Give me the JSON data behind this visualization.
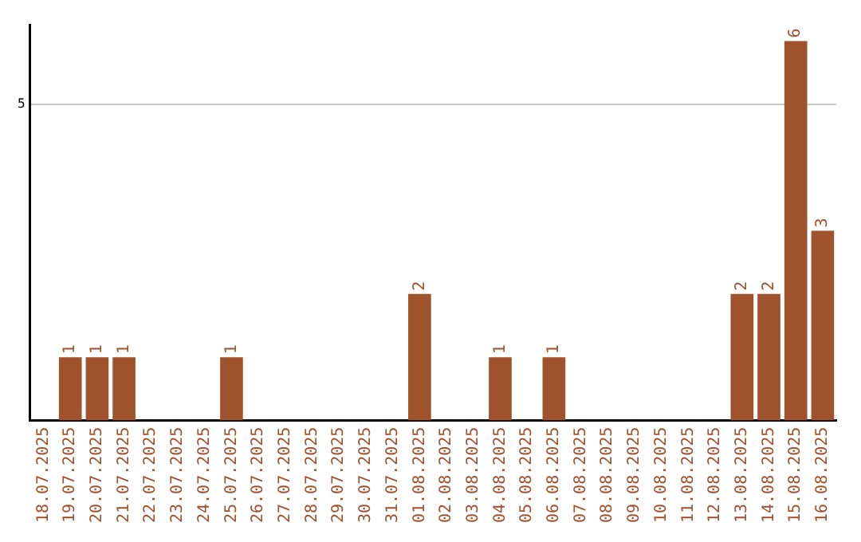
{
  "chart_data": {
    "type": "bar",
    "categories": [
      "18.07.2025",
      "19.07.2025",
      "20.07.2025",
      "21.07.2025",
      "22.07.2025",
      "23.07.2025",
      "24.07.2025",
      "25.07.2025",
      "26.07.2025",
      "27.07.2025",
      "28.07.2025",
      "29.07.2025",
      "30.07.2025",
      "31.07.2025",
      "01.08.2025",
      "02.08.2025",
      "03.08.2025",
      "04.08.2025",
      "05.08.2025",
      "06.08.2025",
      "07.08.2025",
      "08.08.2025",
      "09.08.2025",
      "10.08.2025",
      "11.08.2025",
      "12.08.2025",
      "13.08.2025",
      "14.08.2025",
      "15.08.2025",
      "16.08.2025"
    ],
    "values": [
      0,
      1,
      1,
      1,
      0,
      0,
      0,
      1,
      0,
      0,
      0,
      0,
      0,
      0,
      2,
      0,
      0,
      1,
      0,
      1,
      0,
      0,
      0,
      0,
      0,
      0,
      2,
      2,
      6,
      3
    ],
    "value_labels": [
      null,
      "1",
      "1",
      "1",
      null,
      null,
      null,
      "1",
      null,
      null,
      null,
      null,
      null,
      null,
      "2",
      null,
      null,
      "1",
      null,
      "1",
      null,
      null,
      null,
      null,
      null,
      null,
      "2",
      "2",
      "6",
      "3"
    ],
    "color": "#a0522d",
    "ylim": [
      0,
      6.25
    ],
    "yticks": [
      5
    ],
    "grid": "y",
    "legend": false
  }
}
